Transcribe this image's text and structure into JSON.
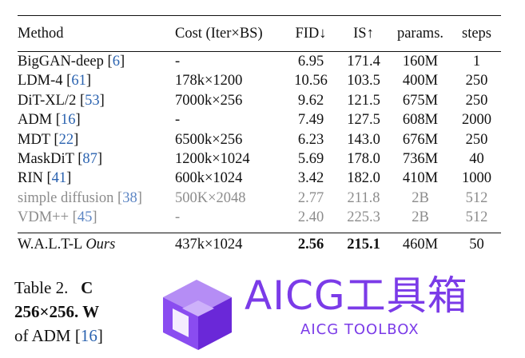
{
  "table": {
    "headers": [
      "Method",
      "Cost (Iter×BS)",
      "FID↓",
      "IS↑",
      "params.",
      "steps"
    ],
    "rows": [
      {
        "method": "BigGAN-deep",
        "cite": "6",
        "cost": "-",
        "fid": "6.95",
        "is": "171.4",
        "params": "160M",
        "steps": "1"
      },
      {
        "method": "LDM-4",
        "cite": "61",
        "cost": "178k×1200",
        "fid": "10.56",
        "is": "103.5",
        "params": "400M",
        "steps": "250"
      },
      {
        "method": "DiT-XL/2",
        "cite": "53",
        "cost": "7000k×256",
        "fid": "9.62",
        "is": "121.5",
        "params": "675M",
        "steps": "250"
      },
      {
        "method": "ADM",
        "cite": "16",
        "cost": "-",
        "fid": "7.49",
        "is": "127.5",
        "params": "608M",
        "steps": "2000"
      },
      {
        "method": "MDT",
        "cite": "22",
        "cost": "6500k×256",
        "fid": "6.23",
        "is": "143.0",
        "params": "676M",
        "steps": "250"
      },
      {
        "method": "MaskDiT",
        "cite": "87",
        "cost": "1200k×1024",
        "fid": "5.69",
        "is": "178.0",
        "params": "736M",
        "steps": "40"
      },
      {
        "method": "RIN",
        "cite": "41",
        "cost": "600k×1024",
        "fid": "3.42",
        "is": "182.0",
        "params": "410M",
        "steps": "1000"
      }
    ],
    "muted_rows": [
      {
        "method": "simple diffusion",
        "cite": "38",
        "cost": "500K×2048",
        "fid": "2.77",
        "is": "211.8",
        "params": "2B",
        "steps": "512"
      },
      {
        "method": "VDM++",
        "cite": "45",
        "cost": "-",
        "fid": "2.40",
        "is": "225.3",
        "params": "2B",
        "steps": "512"
      }
    ],
    "ours": {
      "method": "W.A.L.T-L",
      "tag": "Ours",
      "cost": "437k×1024",
      "fid": "2.56",
      "is": "215.1",
      "params": "460M",
      "steps": "50"
    }
  },
  "caption": {
    "line1_label": "Table 2.",
    "line1_tail": "C",
    "line2_bold": "256×256",
    "line2_tail": ". W",
    "line3_text": "of ADM [",
    "line3_cite": "16",
    "line3_tail": "]"
  },
  "watermark": {
    "title": "AICG工具箱",
    "subtitle": "AICG TOOLBOX",
    "color": "#7b3be8"
  }
}
